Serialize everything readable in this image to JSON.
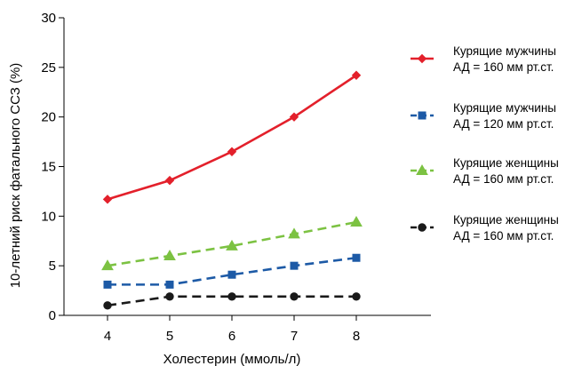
{
  "chart_data": {
    "type": "line",
    "title": "",
    "xlabel": "Холестерин (ммоль/л)",
    "ylabel": "10-летний риск фатального ССЗ (%)",
    "x": [
      4,
      5,
      6,
      7,
      8
    ],
    "xlim": [
      3.3,
      9.2
    ],
    "ylim": [
      0,
      30
    ],
    "xticks": [
      4,
      5,
      6,
      7,
      8
    ],
    "yticks": [
      0,
      5,
      10,
      15,
      20,
      25,
      30
    ],
    "grid": false,
    "legend_position": "right",
    "series": [
      {
        "name_line1": "Курящие мужчины",
        "name_line2": "АД = 160 мм рт.ст.",
        "values": [
          11.7,
          13.6,
          16.5,
          20.0,
          24.2
        ],
        "color": "#e3202b",
        "marker": "diamond",
        "dashed": false
      },
      {
        "name_line1": "Курящие мужчины",
        "name_line2": "АД = 120 мм рт.ст.",
        "values": [
          3.1,
          3.1,
          4.1,
          5.0,
          5.8
        ],
        "color": "#1d5aa6",
        "marker": "square",
        "dashed": true
      },
      {
        "name_line1": "Курящие женщины",
        "name_line2": "АД = 160 мм рт.ст.",
        "values": [
          5.0,
          6.0,
          7.0,
          8.2,
          9.4
        ],
        "color": "#7cc242",
        "marker": "triangle",
        "dashed": true
      },
      {
        "name_line1": "Курящие женщины",
        "name_line2": "АД = 160 мм рт.ст.",
        "values": [
          1.0,
          1.9,
          1.9,
          1.9,
          1.9
        ],
        "color": "#1a1a1a",
        "marker": "circle",
        "dashed": true
      }
    ]
  }
}
